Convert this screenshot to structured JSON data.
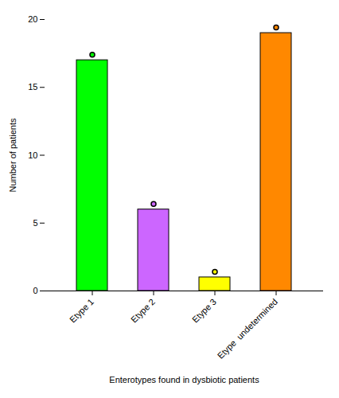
{
  "chart_data": {
    "type": "bar",
    "categories": [
      "Etype 1",
      "Etype 2",
      "Etype 3",
      "Etype  undetermined"
    ],
    "values": [
      17,
      6,
      1,
      19
    ],
    "colors": [
      "#00ff00",
      "#cc66ff",
      "#ffff00",
      "#ff8800"
    ],
    "ylabel": "Number of patients",
    "xlabel": "Enterotypes found in dysbiotic patients",
    "ylim": [
      0,
      20
    ],
    "yticks": [
      0,
      5,
      10,
      15,
      20
    ],
    "grid": false
  }
}
